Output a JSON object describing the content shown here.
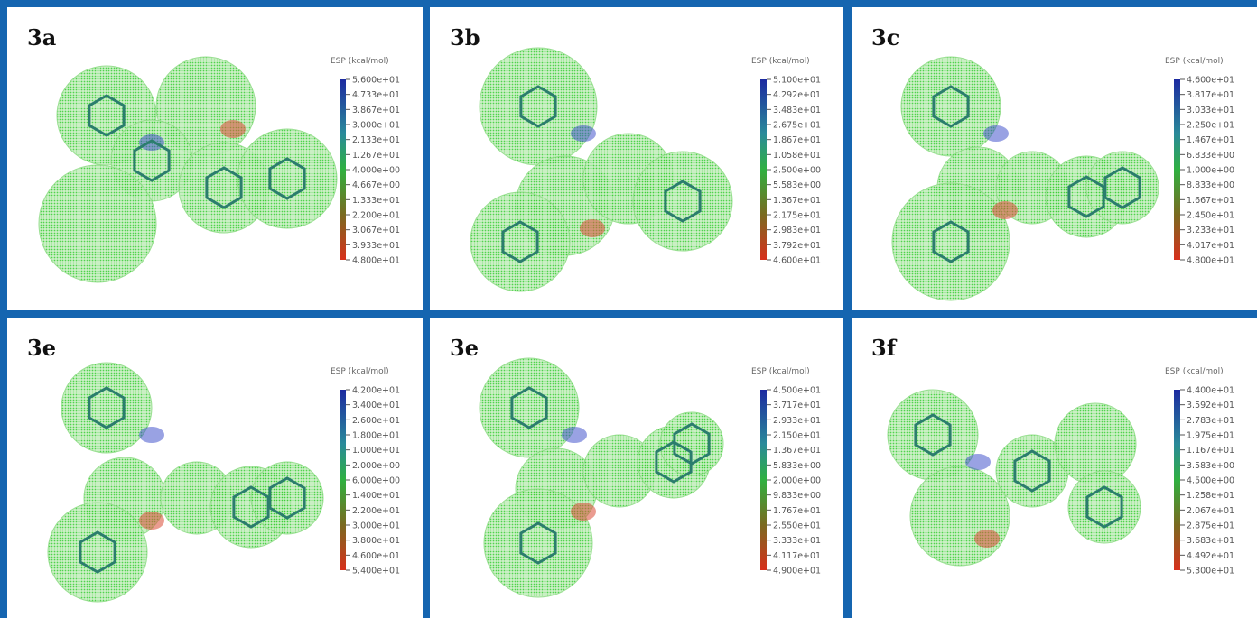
{
  "panels": [
    {
      "label": "3a",
      "colorbar_title": "ESP (kcal/mol)",
      "ticks": [
        "5.600e+01",
        "4.733e+01",
        "3.867e+01",
        "3.000e+01",
        "2.133e+01",
        "1.267e+01",
        "4.000e+00",
        "4.667e+00",
        "1.333e+01",
        "2.200e+01",
        "3.067e+01",
        "3.933e+01",
        "4.800e+01"
      ]
    },
    {
      "label": "3b",
      "colorbar_title": "ESP (kcal/mol)",
      "ticks": [
        "5.100e+01",
        "4.292e+01",
        "3.483e+01",
        "2.675e+01",
        "1.867e+01",
        "1.058e+01",
        "2.500e+00",
        "5.583e+00",
        "1.367e+01",
        "2.175e+01",
        "2.983e+01",
        "3.792e+01",
        "4.600e+01"
      ]
    },
    {
      "label": "3c",
      "colorbar_title": "ESP (kcal/mol)",
      "ticks": [
        "4.600e+01",
        "3.817e+01",
        "3.033e+01",
        "2.250e+01",
        "1.467e+01",
        "6.833e+00",
        "1.000e+00",
        "8.833e+00",
        "1.667e+01",
        "2.450e+01",
        "3.233e+01",
        "4.017e+01",
        "4.800e+01"
      ]
    },
    {
      "label": "3e",
      "colorbar_title": "ESP (kcal/mol)",
      "ticks": [
        "4.200e+01",
        "3.400e+01",
        "2.600e+01",
        "1.800e+01",
        "1.000e+01",
        "2.000e+00",
        "6.000e+00",
        "1.400e+01",
        "2.200e+01",
        "3.000e+01",
        "3.800e+01",
        "4.600e+01",
        "5.400e+01"
      ]
    },
    {
      "label": "3e",
      "colorbar_title": "ESP (kcal/mol)",
      "ticks": [
        "4.500e+01",
        "3.717e+01",
        "2.933e+01",
        "2.150e+01",
        "1.367e+01",
        "5.833e+00",
        "2.000e+00",
        "9.833e+00",
        "1.767e+01",
        "2.550e+01",
        "3.333e+01",
        "4.117e+01",
        "4.900e+01"
      ]
    },
    {
      "label": "3f",
      "colorbar_title": "ESP (kcal/mol)",
      "ticks": [
        "4.400e+01",
        "3.592e+01",
        "2.783e+01",
        "1.975e+01",
        "1.167e+01",
        "3.583e+00",
        "4.500e+00",
        "1.258e+01",
        "2.067e+01",
        "2.875e+01",
        "3.683e+01",
        "4.492e+01",
        "5.300e+01"
      ]
    }
  ]
}
